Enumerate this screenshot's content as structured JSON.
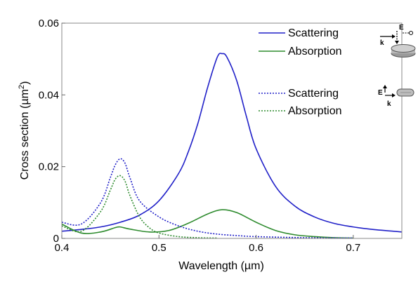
{
  "chart_data": {
    "type": "line",
    "title": "",
    "xlabel": "Wavelength (µm)",
    "ylabel": "Cross section (µm",
    "ylabel_sup": "2",
    "ylabel_close": ")",
    "xlim": [
      0.4,
      0.75
    ],
    "ylim": [
      0,
      0.06
    ],
    "xticks": [
      0.4,
      0.5,
      0.6,
      0.7
    ],
    "xtick_labels": [
      "0.4",
      "0.5",
      "0.6",
      "0.7"
    ],
    "yticks": [
      0,
      0.02,
      0.04,
      0.06
    ],
    "ytick_labels": [
      "0",
      "0.02",
      "0.04",
      "0.06"
    ],
    "grid": false,
    "legend_position": "top-right",
    "series": [
      {
        "name": "Scattering",
        "group": "in-plane E, k in-plane",
        "style": "solid",
        "color": "#2020c8",
        "x": [
          0.4,
          0.42,
          0.44,
          0.46,
          0.48,
          0.5,
          0.52,
          0.53,
          0.54,
          0.55,
          0.56,
          0.565,
          0.57,
          0.58,
          0.59,
          0.6,
          0.62,
          0.64,
          0.66,
          0.68,
          0.7,
          0.72,
          0.75
        ],
        "y": [
          0.002,
          0.0025,
          0.0032,
          0.0045,
          0.0065,
          0.0105,
          0.018,
          0.024,
          0.032,
          0.042,
          0.0505,
          0.0515,
          0.0505,
          0.044,
          0.034,
          0.025,
          0.0145,
          0.009,
          0.006,
          0.0042,
          0.0032,
          0.0025,
          0.0018
        ]
      },
      {
        "name": "Absorption",
        "group": "in-plane E, k in-plane",
        "style": "solid",
        "color": "#2e8b2e",
        "x": [
          0.4,
          0.42,
          0.44,
          0.455,
          0.46,
          0.47,
          0.49,
          0.51,
          0.53,
          0.55,
          0.565,
          0.58,
          0.6,
          0.62,
          0.64,
          0.66,
          0.68,
          0.7
        ],
        "y": [
          0.004,
          0.0015,
          0.0018,
          0.003,
          0.0032,
          0.0026,
          0.0018,
          0.0022,
          0.0042,
          0.0068,
          0.008,
          0.0072,
          0.0045,
          0.0022,
          0.001,
          0.0005,
          0.0002,
          0.0001
        ]
      },
      {
        "name": "Scattering",
        "group": "E out-of-plane, k in-plane",
        "style": "dotted",
        "color": "#2020c8",
        "x": [
          0.4,
          0.42,
          0.44,
          0.45,
          0.455,
          0.46,
          0.465,
          0.47,
          0.48,
          0.5,
          0.52,
          0.54,
          0.56,
          0.58,
          0.6,
          0.65,
          0.7
        ],
        "y": [
          0.0045,
          0.004,
          0.01,
          0.017,
          0.0205,
          0.0222,
          0.021,
          0.017,
          0.0105,
          0.006,
          0.0035,
          0.002,
          0.0012,
          0.0008,
          0.0005,
          0.0002,
          0.0001
        ]
      },
      {
        "name": "Absorption",
        "group": "E out-of-plane, k in-plane",
        "style": "dotted",
        "color": "#2e8b2e",
        "x": [
          0.4,
          0.42,
          0.44,
          0.45,
          0.455,
          0.46,
          0.465,
          0.47,
          0.48,
          0.49,
          0.5,
          0.52,
          0.54,
          0.56
        ],
        "y": [
          0.0035,
          0.002,
          0.0075,
          0.0135,
          0.0165,
          0.0175,
          0.016,
          0.012,
          0.006,
          0.003,
          0.0015,
          0.0005,
          0.0002,
          0.0001
        ]
      }
    ],
    "polarization_insets": [
      {
        "vectors": [
          "k",
          "E"
        ],
        "icon": "disk-face-on-icon"
      },
      {
        "vectors": [
          "E",
          "k"
        ],
        "icon": "disk-edge-on-icon"
      }
    ]
  }
}
